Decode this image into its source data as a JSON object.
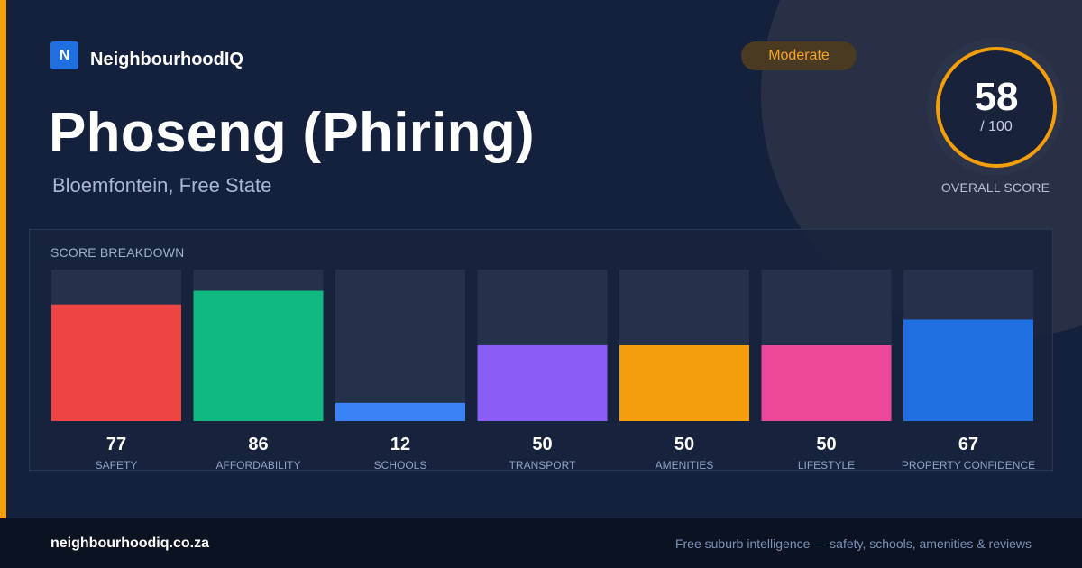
{
  "brand": {
    "logo_letter": "N",
    "name": "NeighbourhoodIQ",
    "logo_color": "#1f6fe0"
  },
  "suburb": {
    "name": "Phoseng (Phiring)",
    "location": "Bloemfontein, Free State"
  },
  "rating_badge": {
    "label": "Moderate",
    "color": "#f5a623"
  },
  "overall": {
    "score": "58",
    "max": "/ 100",
    "label": "OVERALL SCORE",
    "ring_color": "#f59e0b"
  },
  "breakdown": {
    "title": "SCORE BREAKDOWN"
  },
  "chart_data": {
    "type": "bar",
    "categories": [
      "SAFETY",
      "AFFORDABILITY",
      "SCHOOLS",
      "TRANSPORT",
      "AMENITIES",
      "LIFESTYLE",
      "PROPERTY CONFIDENCE"
    ],
    "values": [
      77,
      86,
      12,
      50,
      50,
      50,
      67
    ],
    "colors": [
      "#ef4444",
      "#10b981",
      "#3b82f6",
      "#8b5cf6",
      "#f59e0b",
      "#ec4899",
      "#1f6fe0"
    ],
    "ylim": [
      0,
      100
    ],
    "track_color": "#25304a",
    "grid": false
  },
  "footer": {
    "url": "neighbourhoodiq.co.za",
    "tagline": "Free suburb intelligence — safety, schools, amenities & reviews"
  }
}
